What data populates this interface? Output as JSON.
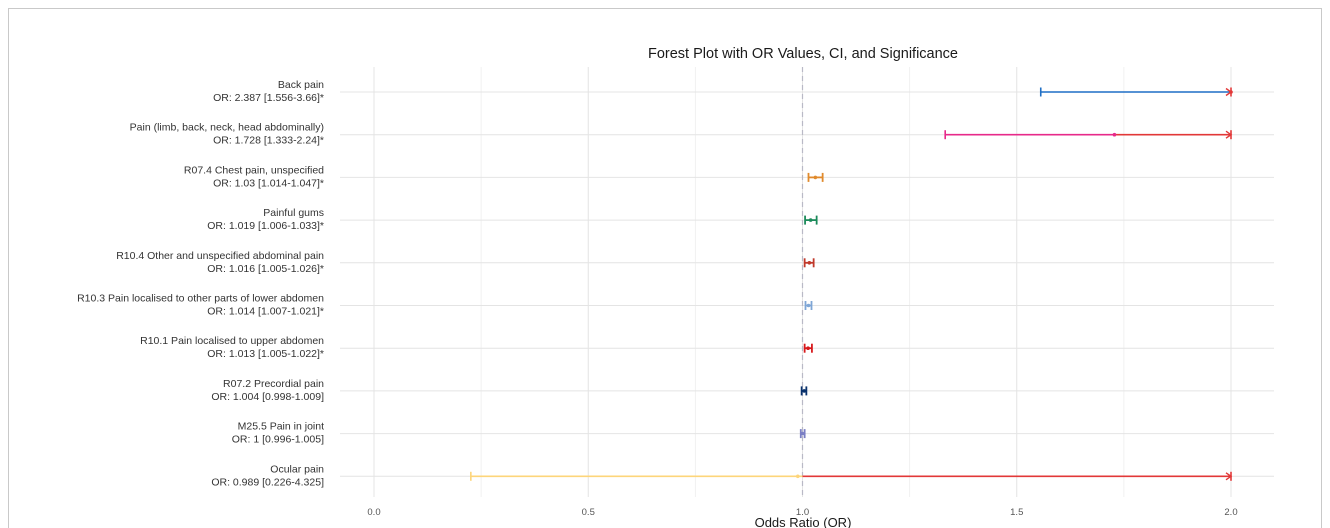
{
  "chart_data": {
    "type": "forest",
    "title": "Forest Plot with OR Values, CI, and Significance",
    "xlabel": "Odds Ratio (OR)",
    "ylabel": "",
    "xlim": [
      -0.22,
      2.1
    ],
    "x_ticks": [
      0.0,
      0.5,
      1.0,
      1.5,
      2.0
    ],
    "x_tick_labels": [
      "0.0",
      "0.5",
      "1.0",
      "1.5",
      "2.0"
    ],
    "reference_line": 1.0,
    "display_clip": 2.0,
    "grid": true,
    "rows": [
      {
        "label": "Back pain",
        "or_text": "OR: 2.387 [1.556-3.66]*",
        "or": 2.387,
        "lower": 1.556,
        "upper": 3.66,
        "color": "#1f6fc5",
        "overflow_color": "#e23838"
      },
      {
        "label": "Pain (limb, back, neck, head abdominally)",
        "or_text": "OR: 1.728 [1.333-2.24]*",
        "or": 1.728,
        "lower": 1.333,
        "upper": 2.24,
        "color": "#e7298a",
        "overflow_color": "#e23838"
      },
      {
        "label": "R07.4 Chest pain, unspecified",
        "or_text": "OR: 1.03 [1.014-1.047]*",
        "or": 1.03,
        "lower": 1.014,
        "upper": 1.047,
        "color": "#e08a2c"
      },
      {
        "label": "Painful gums",
        "or_text": "OR: 1.019 [1.006-1.033]*",
        "or": 1.019,
        "lower": 1.006,
        "upper": 1.033,
        "color": "#1b8a5a"
      },
      {
        "label": "R10.4 Other and unspecified abdominal pain",
        "or_text": "OR: 1.016 [1.005-1.026]*",
        "or": 1.016,
        "lower": 1.005,
        "upper": 1.026,
        "color": "#c0392b"
      },
      {
        "label": "R10.3 Pain localised to other parts of lower abdomen",
        "or_text": "OR: 1.014 [1.007-1.021]*",
        "or": 1.014,
        "lower": 1.007,
        "upper": 1.021,
        "color": "#7fa6d6"
      },
      {
        "label": "R10.1 Pain localised to upper abdomen",
        "or_text": "OR: 1.013 [1.005-1.022]*",
        "or": 1.013,
        "lower": 1.005,
        "upper": 1.022,
        "color": "#d7191c"
      },
      {
        "label": "R07.2 Precordial pain",
        "or_text": "OR: 1.004 [0.998-1.009]",
        "or": 1.004,
        "lower": 0.998,
        "upper": 1.009,
        "color": "#08306b"
      },
      {
        "label": "M25.5 Pain in joint",
        "or_text": "OR: 1 [0.996-1.005]",
        "or": 1.0,
        "lower": 0.996,
        "upper": 1.005,
        "color": "#7b7fc4"
      },
      {
        "label": "Ocular pain",
        "or_text": "OR: 0.989 [0.226-4.325]",
        "or": 0.989,
        "lower": 0.226,
        "upper": 4.325,
        "color": "#fdd57a",
        "overflow_color": "#e23838"
      }
    ]
  }
}
